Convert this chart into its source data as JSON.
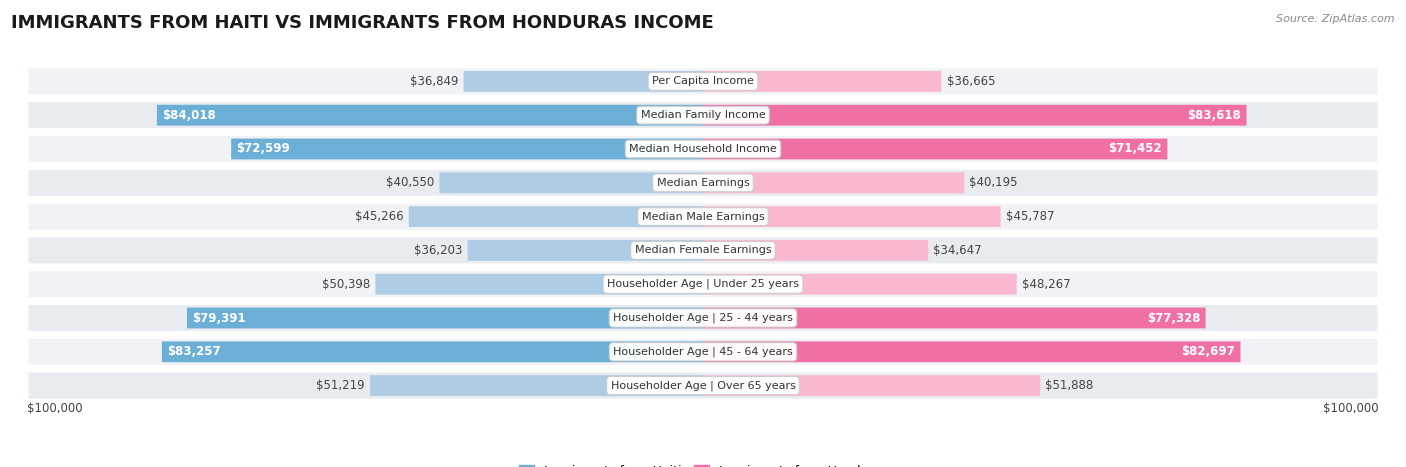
{
  "title": "IMMIGRANTS FROM HAITI VS IMMIGRANTS FROM HONDURAS INCOME",
  "source": "Source: ZipAtlas.com",
  "categories": [
    "Per Capita Income",
    "Median Family Income",
    "Median Household Income",
    "Median Earnings",
    "Median Male Earnings",
    "Median Female Earnings",
    "Householder Age | Under 25 years",
    "Householder Age | 25 - 44 years",
    "Householder Age | 45 - 64 years",
    "Householder Age | Over 65 years"
  ],
  "haiti_values": [
    36849,
    84018,
    72599,
    40550,
    45266,
    36203,
    50398,
    79391,
    83257,
    51219
  ],
  "honduras_values": [
    36665,
    83618,
    71452,
    40195,
    45787,
    34647,
    48267,
    77328,
    82697,
    51888
  ],
  "haiti_labels": [
    "$36,849",
    "$84,018",
    "$72,599",
    "$40,550",
    "$45,266",
    "$36,203",
    "$50,398",
    "$79,391",
    "$83,257",
    "$51,219"
  ],
  "honduras_labels": [
    "$36,665",
    "$83,618",
    "$71,452",
    "$40,195",
    "$45,787",
    "$34,647",
    "$48,267",
    "$77,328",
    "$82,697",
    "$51,888"
  ],
  "haiti_color": "#6baed6",
  "honduras_color": "#f06fa4",
  "haiti_color_light": "#aecde4",
  "honduras_color_light": "#f9b8d0",
  "label_inside_threshold": 60000,
  "max_value": 100000,
  "bg_color": "#ffffff",
  "row_bg_odd": "#f0f2f5",
  "row_bg_even": "#e8ebf0",
  "row_border": "#d0d5dd",
  "legend_haiti": "Immigrants from Haiti",
  "legend_honduras": "Immigrants from Honduras",
  "xlabel_left": "$100,000",
  "xlabel_right": "$100,000",
  "title_fontsize": 13,
  "label_fontsize": 8.5,
  "cat_fontsize": 8.0
}
